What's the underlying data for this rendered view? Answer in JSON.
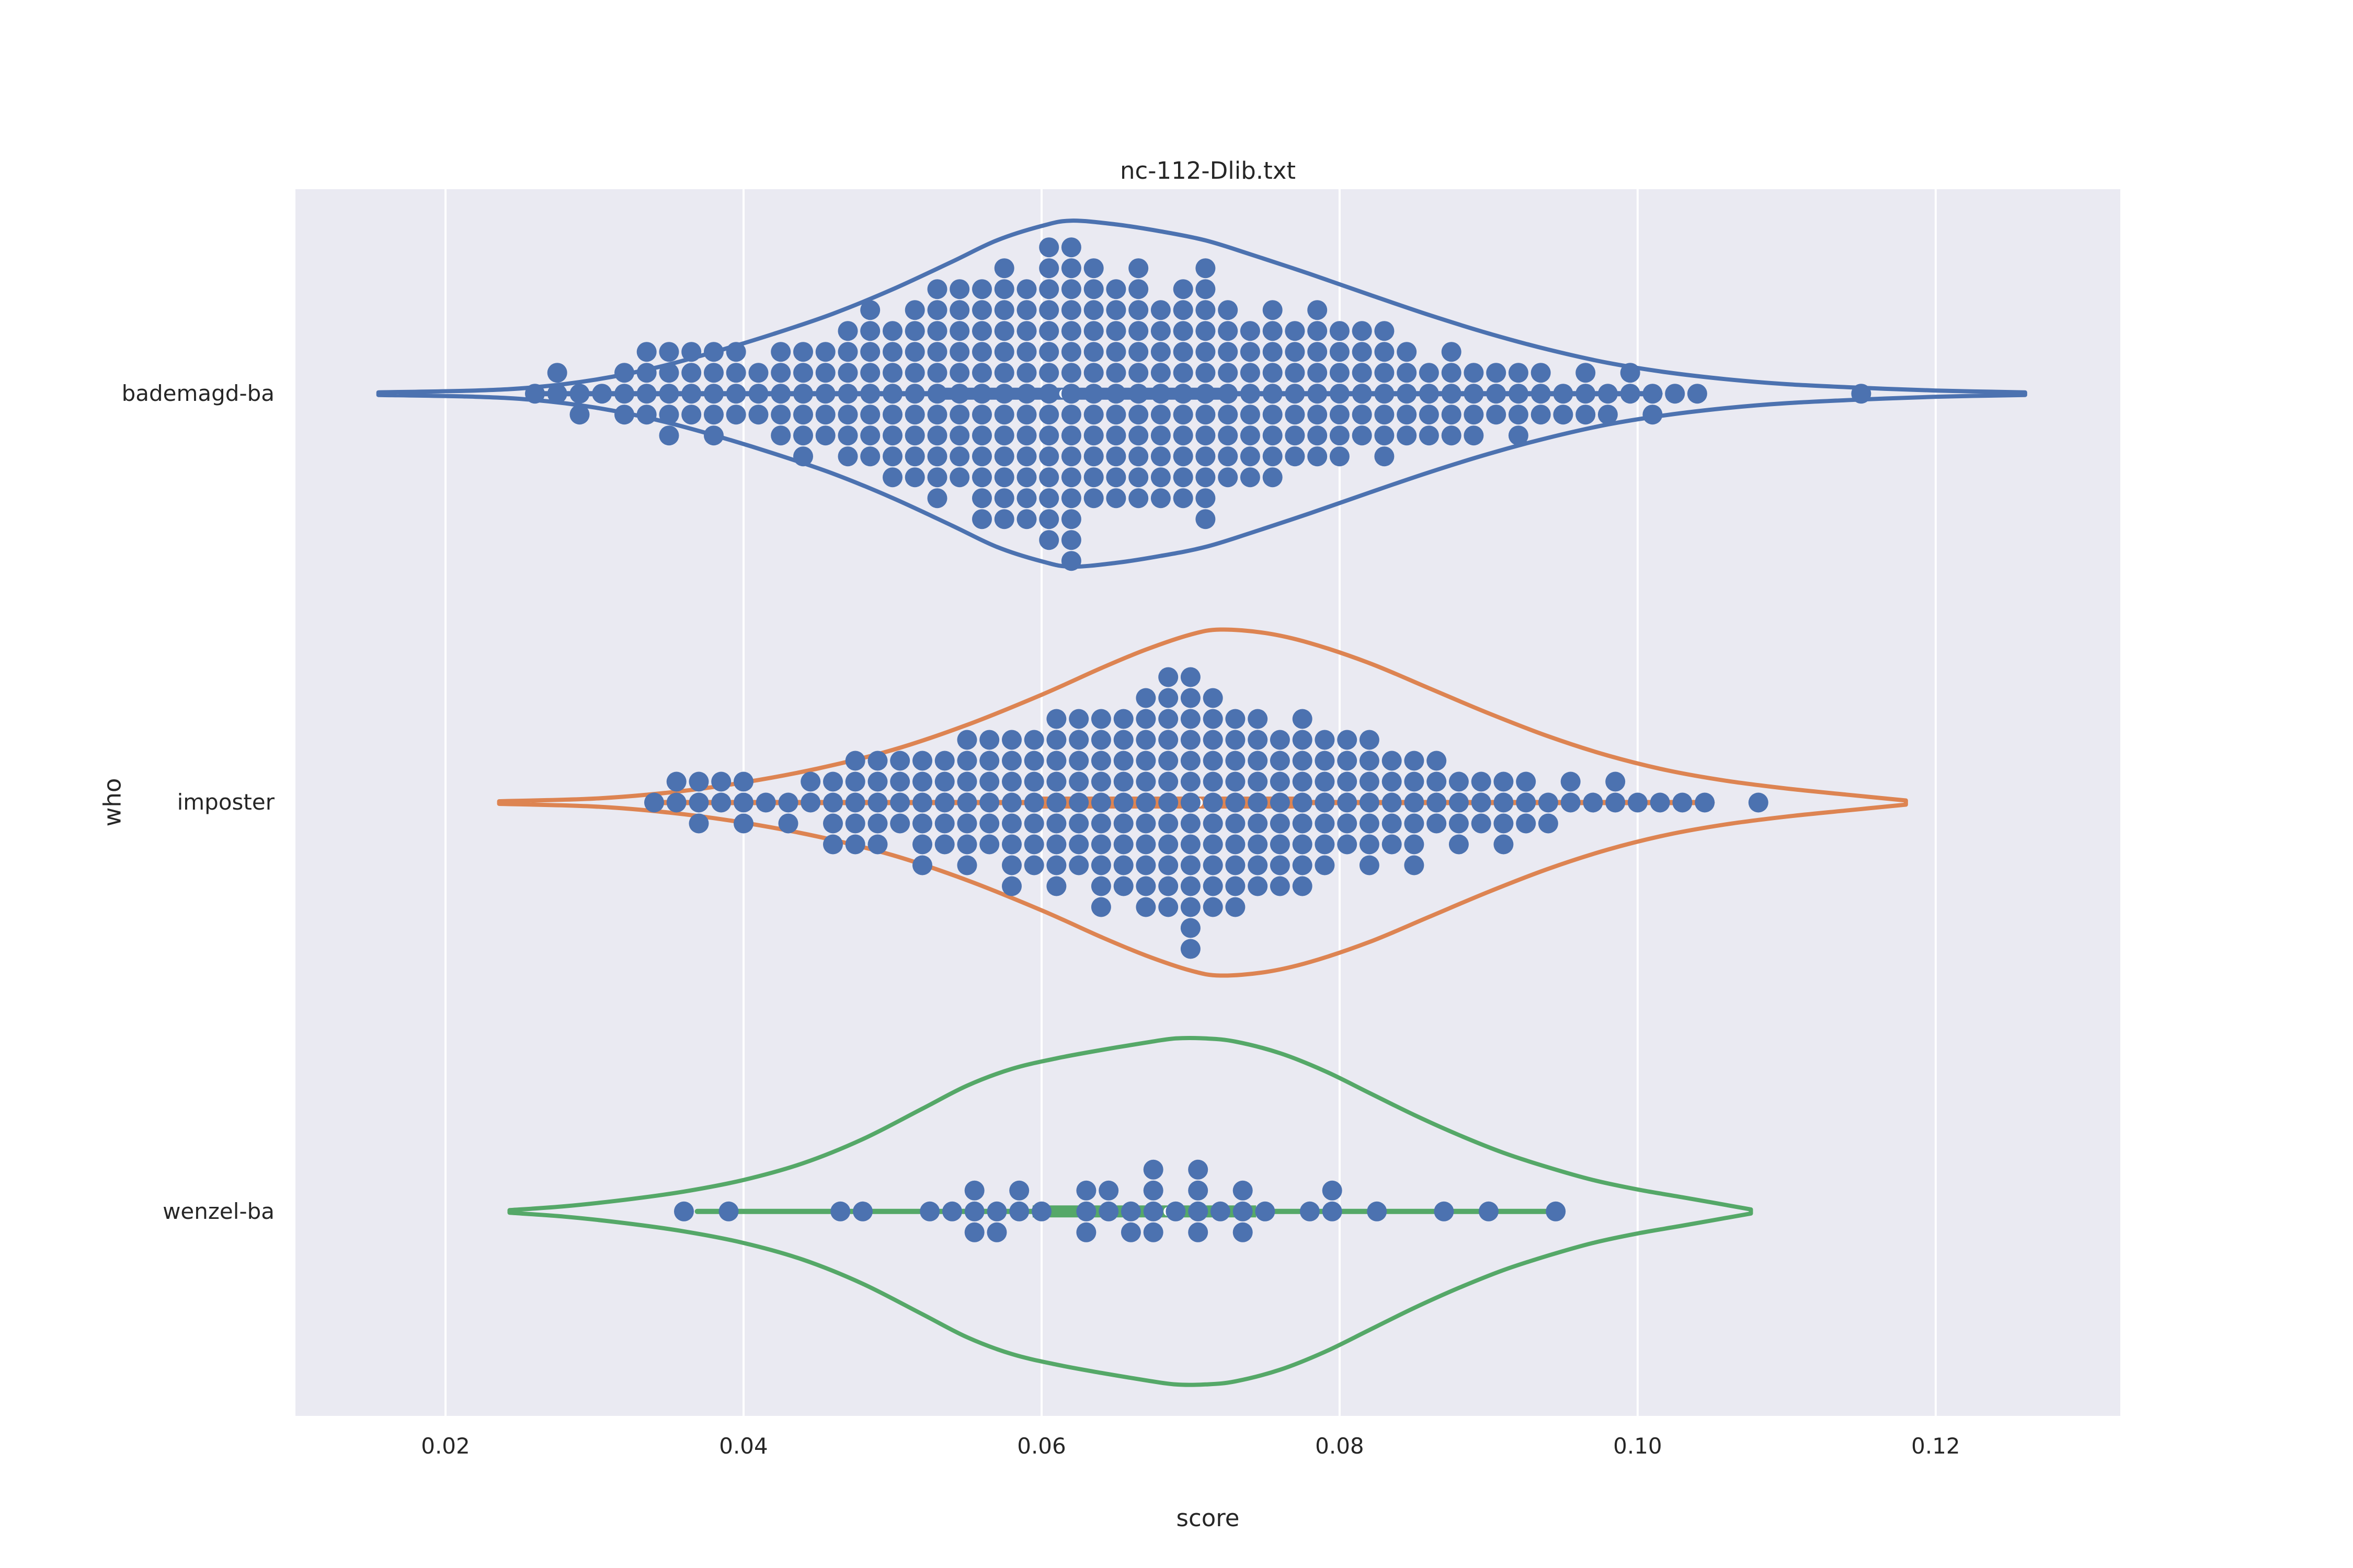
{
  "figure": {
    "title": "nc-112-Dlib.txt",
    "background": "#ffffff",
    "axes_background": "#eaeaf2",
    "gridline_color": "#ffffff",
    "text_color": "#262626"
  },
  "chart_data": {
    "type": "violin+swarm",
    "title": "nc-112-Dlib.txt",
    "xlabel": "score",
    "ylabel": "who",
    "orientation": "horizontal",
    "grid": "vertical-white-on-lavender",
    "legend": "none",
    "xlim": [
      0.00993,
      0.13239
    ],
    "x_ticks": [
      0.02,
      0.04,
      0.06,
      0.08,
      0.1,
      0.12
    ],
    "x_tick_labels": [
      "0.02",
      "0.04",
      "0.06",
      "0.08",
      "0.10",
      "0.12"
    ],
    "categories": [
      "bademagd-ba",
      "imposter",
      "wenzel-ba"
    ],
    "dot_color": "#4c72b0",
    "median_marker_color": "#ffffff",
    "series": [
      {
        "name": "bademagd-ba",
        "color": "#4c72b0",
        "violin_support": [
          0.0155,
          0.126
        ],
        "violin_profile": [
          [
            0.0155,
            0.006
          ],
          [
            0.022,
            0.018
          ],
          [
            0.026,
            0.037
          ],
          [
            0.03,
            0.08
          ],
          [
            0.034,
            0.148
          ],
          [
            0.038,
            0.24
          ],
          [
            0.042,
            0.345
          ],
          [
            0.046,
            0.462
          ],
          [
            0.05,
            0.603
          ],
          [
            0.054,
            0.763
          ],
          [
            0.057,
            0.886
          ],
          [
            0.06,
            0.969
          ],
          [
            0.062,
            1.0
          ],
          [
            0.065,
            0.978
          ],
          [
            0.068,
            0.938
          ],
          [
            0.071,
            0.886
          ],
          [
            0.074,
            0.806
          ],
          [
            0.078,
            0.692
          ],
          [
            0.082,
            0.572
          ],
          [
            0.086,
            0.455
          ],
          [
            0.09,
            0.348
          ],
          [
            0.094,
            0.255
          ],
          [
            0.098,
            0.178
          ],
          [
            0.102,
            0.123
          ],
          [
            0.106,
            0.083
          ],
          [
            0.11,
            0.055
          ],
          [
            0.115,
            0.034
          ],
          [
            0.12,
            0.018
          ],
          [
            0.126,
            0.006
          ]
        ],
        "whisker": [
          0.026,
          0.1015
        ],
        "box": [
          0.0535,
          0.0725
        ],
        "median": 0.0615,
        "swarm_bins": {
          "start": 0.026,
          "step": 0.0015,
          "counts": [
            1,
            2,
            2,
            1,
            3,
            4,
            5,
            4,
            5,
            4,
            3,
            5,
            6,
            5,
            7,
            8,
            8,
            9,
            11,
            10,
            12,
            13,
            12,
            15,
            16,
            12,
            11,
            12,
            10,
            11,
            13,
            9,
            8,
            9,
            7,
            8,
            7,
            6,
            7,
            5,
            4,
            5,
            4,
            3,
            4,
            3,
            2,
            3,
            2,
            2,
            2,
            1,
            1
          ]
        },
        "outlier_points": [
          0.115
        ]
      },
      {
        "name": "imposter",
        "color": "#dd8452",
        "violin_support": [
          0.0236,
          0.118
        ],
        "violin_profile": [
          [
            0.0236,
            0.006
          ],
          [
            0.03,
            0.023
          ],
          [
            0.035,
            0.058
          ],
          [
            0.04,
            0.116
          ],
          [
            0.045,
            0.197
          ],
          [
            0.05,
            0.304
          ],
          [
            0.055,
            0.449
          ],
          [
            0.06,
            0.623
          ],
          [
            0.064,
            0.777
          ],
          [
            0.067,
            0.884
          ],
          [
            0.07,
            0.971
          ],
          [
            0.072,
            1.0
          ],
          [
            0.075,
            0.98
          ],
          [
            0.078,
            0.922
          ],
          [
            0.082,
            0.806
          ],
          [
            0.086,
            0.661
          ],
          [
            0.09,
            0.516
          ],
          [
            0.094,
            0.383
          ],
          [
            0.098,
            0.272
          ],
          [
            0.102,
            0.186
          ],
          [
            0.106,
            0.125
          ],
          [
            0.11,
            0.081
          ],
          [
            0.114,
            0.046
          ],
          [
            0.118,
            0.012
          ]
        ],
        "whisker": [
          0.0336,
          0.105
        ],
        "box": [
          0.06,
          0.078
        ],
        "median": 0.0705,
        "swarm_bins": {
          "start": 0.034,
          "step": 0.0015,
          "counts": [
            1,
            2,
            3,
            2,
            3,
            1,
            2,
            2,
            4,
            5,
            5,
            4,
            6,
            5,
            7,
            6,
            8,
            7,
            9,
            8,
            10,
            9,
            11,
            12,
            14,
            11,
            10,
            9,
            8,
            9,
            7,
            6,
            7,
            5,
            6,
            4,
            4,
            3,
            4,
            3,
            2,
            2,
            1,
            2,
            1,
            1,
            1,
            1
          ]
        },
        "outlier_points": [
          0.1081
        ]
      },
      {
        "name": "wenzel-ba",
        "color": "#55a868",
        "violin_support": [
          0.0243,
          0.1076
        ],
        "violin_profile": [
          [
            0.0243,
            0.006
          ],
          [
            0.028,
            0.03
          ],
          [
            0.032,
            0.067
          ],
          [
            0.036,
            0.115
          ],
          [
            0.04,
            0.182
          ],
          [
            0.044,
            0.279
          ],
          [
            0.048,
            0.418
          ],
          [
            0.052,
            0.594
          ],
          [
            0.055,
            0.727
          ],
          [
            0.058,
            0.824
          ],
          [
            0.061,
            0.885
          ],
          [
            0.064,
            0.933
          ],
          [
            0.067,
            0.976
          ],
          [
            0.069,
            1.0
          ],
          [
            0.071,
            1.0
          ],
          [
            0.073,
            0.982
          ],
          [
            0.076,
            0.915
          ],
          [
            0.079,
            0.812
          ],
          [
            0.082,
            0.685
          ],
          [
            0.085,
            0.558
          ],
          [
            0.088,
            0.442
          ],
          [
            0.091,
            0.339
          ],
          [
            0.094,
            0.255
          ],
          [
            0.097,
            0.182
          ],
          [
            0.1,
            0.127
          ],
          [
            0.103,
            0.082
          ],
          [
            0.1076,
            0.012
          ]
        ],
        "whisker": [
          0.0369,
          0.0949
        ],
        "box": [
          0.0594,
          0.0744
        ],
        "median": 0.0685,
        "swarm_bins": {
          "start": 0.036,
          "step": 0.0015,
          "counts": [
            1,
            0,
            1,
            0,
            0,
            0,
            0,
            1,
            1,
            0,
            0,
            1,
            1,
            3,
            2,
            2,
            1,
            0,
            3,
            2,
            2,
            4,
            1,
            4,
            1,
            3,
            1,
            0,
            1,
            2,
            0,
            1,
            0,
            0,
            1,
            0,
            1,
            0,
            0,
            1
          ]
        },
        "outlier_points": []
      }
    ]
  }
}
